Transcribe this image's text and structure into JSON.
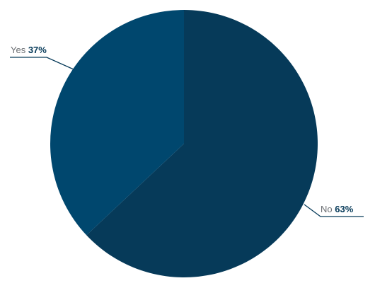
{
  "chart_data": {
    "type": "pie",
    "slices": [
      {
        "label": "No",
        "value": 63,
        "display": "63%",
        "color": "#063a59"
      },
      {
        "label": "Yes",
        "value": 37,
        "display": "37%",
        "color": "#00476e"
      }
    ],
    "start_angle_deg": 0,
    "direction": "clockwise",
    "label_color": "#6b6f73",
    "value_label_color": "#063a59",
    "leader_line_color": "#063a59"
  }
}
